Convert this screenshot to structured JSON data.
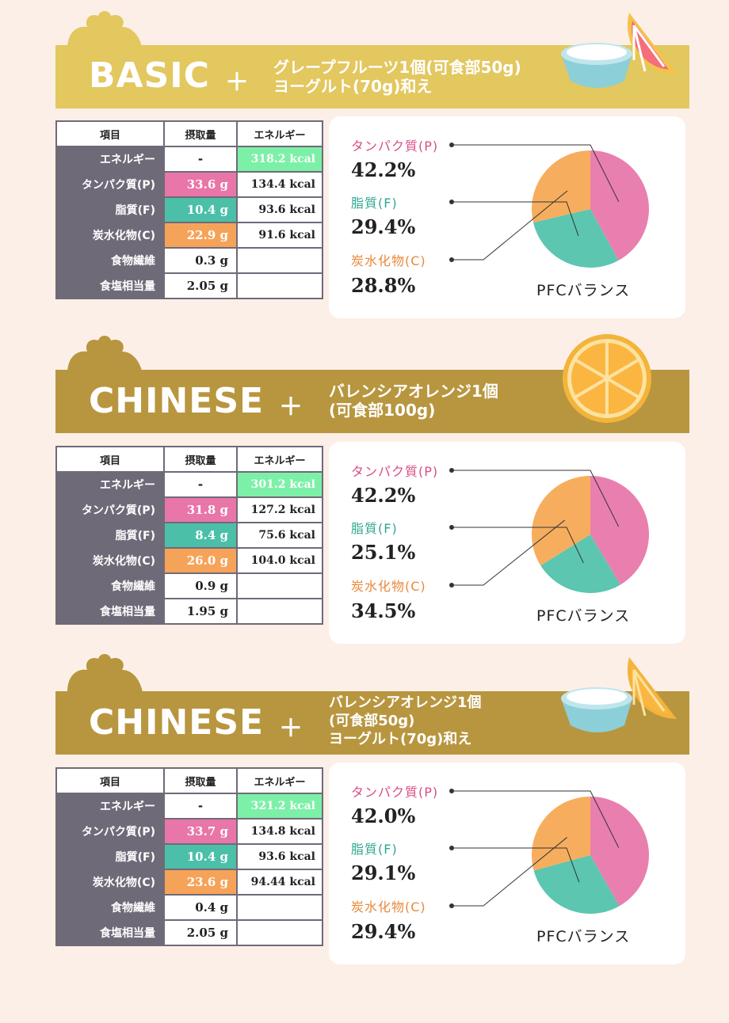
{
  "colors": {
    "protein": "#e97fae",
    "fat": "#5cc6b0",
    "carb": "#f6ae5e",
    "energy_highlight": "#7df0a8",
    "banner_basic": "#e3c75f",
    "banner_chinese": "#b8963f"
  },
  "table_headers": [
    "項目",
    "摂取量",
    "エネルギー"
  ],
  "row_labels": [
    "エネルギー",
    "タンパク質(P)",
    "脂質(F)",
    "炭水化物(C)",
    "食物繊維",
    "食塩相当量"
  ],
  "chart_labels": {
    "protein": "タンパク質(P)",
    "fat": "脂質(F)",
    "carb": "炭水化物(C)",
    "balance": "PFCバランス"
  },
  "sections": [
    {
      "title": "BASIC",
      "plus": "＋",
      "desc": [
        "グレープフルーツ1個(可食部50g)",
        "ヨーグルト(70g)和え"
      ],
      "banner_icon": "yogurt-grapefruit-icon",
      "rows": [
        {
          "amount": "-",
          "energy": "318.2 kcal"
        },
        {
          "amount": "33.6 g",
          "energy": "134.4 kcal"
        },
        {
          "amount": "10.4 g",
          "energy": "93.6 kcal"
        },
        {
          "amount": "22.9 g",
          "energy": "91.6 kcal"
        },
        {
          "amount": "0.3 g",
          "energy": ""
        },
        {
          "amount": "2.05 g",
          "energy": ""
        }
      ],
      "pct": {
        "protein": "42.2%",
        "fat": "29.4%",
        "carb": "28.8%"
      }
    },
    {
      "title": "CHINESE",
      "plus": "＋",
      "desc": [
        "バレンシアオレンジ1個",
        "(可食部100g)"
      ],
      "banner_icon": "orange-slice-icon",
      "rows": [
        {
          "amount": "-",
          "energy": "301.2 kcal"
        },
        {
          "amount": "31.8 g",
          "energy": "127.2 kcal"
        },
        {
          "amount": "8.4 g",
          "energy": "75.6 kcal"
        },
        {
          "amount": "26.0 g",
          "energy": "104.0 kcal"
        },
        {
          "amount": "0.9 g",
          "energy": ""
        },
        {
          "amount": "1.95 g",
          "energy": ""
        }
      ],
      "pct": {
        "protein": "42.2%",
        "fat": "25.1%",
        "carb": "34.5%"
      }
    },
    {
      "title": "CHINESE",
      "plus": "＋",
      "desc": [
        "バレンシアオレンジ1個",
        "(可食部50g)",
        "ヨーグルト(70g)和え"
      ],
      "banner_icon": "yogurt-orange-icon",
      "rows": [
        {
          "amount": "-",
          "energy": "321.2 kcal"
        },
        {
          "amount": "33.7 g",
          "energy": "134.8 kcal"
        },
        {
          "amount": "10.4 g",
          "energy": "93.6 kcal"
        },
        {
          "amount": "23.6 g",
          "energy": "94.44 kcal"
        },
        {
          "amount": "0.4 g",
          "energy": ""
        },
        {
          "amount": "2.05 g",
          "energy": ""
        }
      ],
      "pct": {
        "protein": "42.0%",
        "fat": "29.1%",
        "carb": "29.4%"
      }
    }
  ],
  "chart_data": [
    {
      "type": "pie",
      "title": "PFCバランス",
      "labels": [
        "タンパク質(P)",
        "脂質(F)",
        "炭水化物(C)"
      ],
      "values": [
        42.2,
        29.4,
        28.8
      ]
    },
    {
      "type": "pie",
      "title": "PFCバランス",
      "labels": [
        "タンパク質(P)",
        "脂質(F)",
        "炭水化物(C)"
      ],
      "values": [
        42.2,
        25.1,
        34.5
      ]
    },
    {
      "type": "pie",
      "title": "PFCバランス",
      "labels": [
        "タンパク質(P)",
        "脂質(F)",
        "炭水化物(C)"
      ],
      "values": [
        42.0,
        29.1,
        29.4
      ]
    }
  ]
}
